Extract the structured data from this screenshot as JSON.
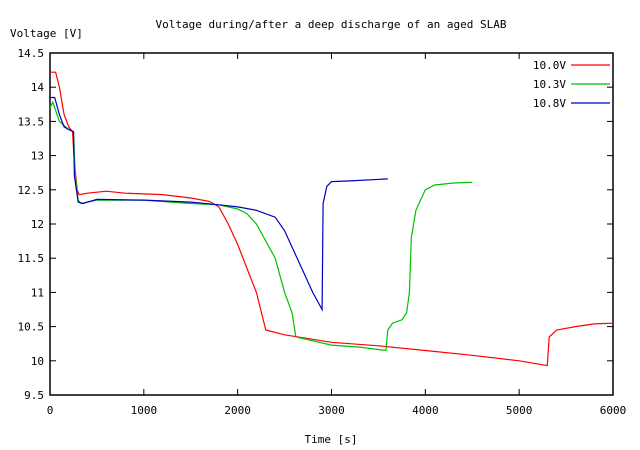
{
  "chart_data": {
    "type": "line",
    "title": "Voltage during/after a deep discharge of an aged SLAB",
    "xlabel": "Time [s]",
    "ylabel": "Voltage [V]",
    "xlim": [
      0,
      6000
    ],
    "ylim": [
      9.5,
      14.5
    ],
    "xticks": [
      0,
      1000,
      2000,
      3000,
      4000,
      5000,
      6000
    ],
    "yticks": [
      9.5,
      10,
      10.5,
      11,
      11.5,
      12,
      12.5,
      13,
      13.5,
      14,
      14.5
    ],
    "grid": false,
    "legend_position": "top-right",
    "series": [
      {
        "name": "10.0V",
        "color": "#ff0000",
        "points": [
          [
            0,
            14.22
          ],
          [
            60,
            14.22
          ],
          [
            100,
            14.0
          ],
          [
            150,
            13.6
          ],
          [
            200,
            13.42
          ],
          [
            240,
            13.35
          ],
          [
            260,
            12.9
          ],
          [
            290,
            12.5
          ],
          [
            310,
            12.43
          ],
          [
            400,
            12.45
          ],
          [
            600,
            12.48
          ],
          [
            800,
            12.45
          ],
          [
            1200,
            12.43
          ],
          [
            1500,
            12.38
          ],
          [
            1700,
            12.33
          ],
          [
            1800,
            12.25
          ],
          [
            1900,
            12.0
          ],
          [
            2000,
            11.7
          ],
          [
            2100,
            11.35
          ],
          [
            2200,
            11.0
          ],
          [
            2300,
            10.45
          ],
          [
            2500,
            10.38
          ],
          [
            3000,
            10.27
          ],
          [
            3500,
            10.22
          ],
          [
            4000,
            10.15
          ],
          [
            4500,
            10.08
          ],
          [
            5000,
            10.0
          ],
          [
            5300,
            9.93
          ],
          [
            5320,
            10.35
          ],
          [
            5400,
            10.45
          ],
          [
            5600,
            10.5
          ],
          [
            5800,
            10.54
          ],
          [
            6000,
            10.55
          ]
        ]
      },
      {
        "name": "10.3V",
        "color": "#00c000",
        "points": [
          [
            0,
            13.7
          ],
          [
            30,
            13.78
          ],
          [
            100,
            13.5
          ],
          [
            200,
            13.38
          ],
          [
            250,
            13.35
          ],
          [
            270,
            12.7
          ],
          [
            300,
            12.35
          ],
          [
            330,
            12.3
          ],
          [
            500,
            12.35
          ],
          [
            1000,
            12.35
          ],
          [
            1500,
            12.3
          ],
          [
            1800,
            12.28
          ],
          [
            2000,
            12.22
          ],
          [
            2100,
            12.15
          ],
          [
            2200,
            12.0
          ],
          [
            2400,
            11.5
          ],
          [
            2500,
            11.0
          ],
          [
            2580,
            10.7
          ],
          [
            2620,
            10.35
          ],
          [
            3000,
            10.23
          ],
          [
            3300,
            10.2
          ],
          [
            3580,
            10.15
          ],
          [
            3600,
            10.45
          ],
          [
            3650,
            10.55
          ],
          [
            3750,
            10.6
          ],
          [
            3800,
            10.7
          ],
          [
            3830,
            11.0
          ],
          [
            3850,
            11.8
          ],
          [
            3900,
            12.2
          ],
          [
            4000,
            12.5
          ],
          [
            4100,
            12.57
          ],
          [
            4300,
            12.6
          ],
          [
            4500,
            12.61
          ]
        ]
      },
      {
        "name": "10.8V",
        "color": "#0000c0",
        "points": [
          [
            0,
            13.85
          ],
          [
            50,
            13.85
          ],
          [
            100,
            13.6
          ],
          [
            150,
            13.42
          ],
          [
            200,
            13.38
          ],
          [
            250,
            13.35
          ],
          [
            260,
            12.7
          ],
          [
            300,
            12.32
          ],
          [
            350,
            12.3
          ],
          [
            500,
            12.36
          ],
          [
            1000,
            12.35
          ],
          [
            1500,
            12.32
          ],
          [
            1800,
            12.28
          ],
          [
            2000,
            12.25
          ],
          [
            2200,
            12.2
          ],
          [
            2400,
            12.1
          ],
          [
            2500,
            11.9
          ],
          [
            2600,
            11.6
          ],
          [
            2700,
            11.3
          ],
          [
            2800,
            11.0
          ],
          [
            2900,
            10.75
          ],
          [
            2910,
            12.3
          ],
          [
            2950,
            12.55
          ],
          [
            3000,
            12.62
          ],
          [
            3200,
            12.63
          ],
          [
            3600,
            12.66
          ]
        ]
      }
    ]
  }
}
